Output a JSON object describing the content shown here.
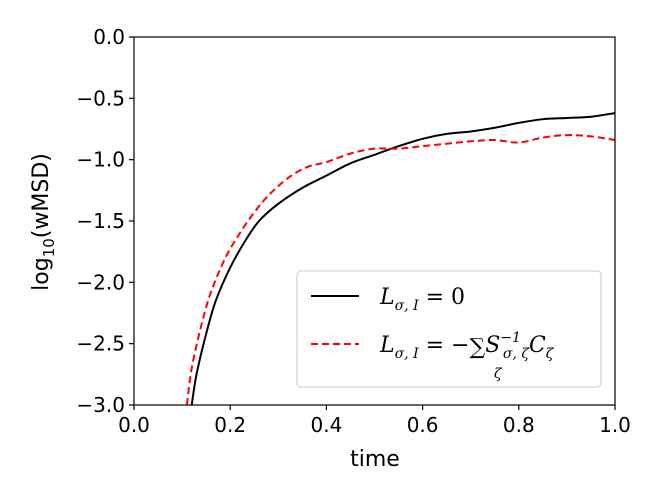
{
  "chart_data": {
    "type": "line",
    "xlabel": "time",
    "ylabel": "log10(wMSD)",
    "ylabel_main": "log",
    "ylabel_sub": "10",
    "ylabel_rest": "(wMSD)",
    "xlim": [
      0.0,
      1.0
    ],
    "ylim": [
      -3.0,
      0.0
    ],
    "xticks": [
      "0.0",
      "0.2",
      "0.4",
      "0.6",
      "0.8",
      "1.0"
    ],
    "yticks": [
      "0.0",
      "−0.5",
      "−1.0",
      "−1.5",
      "−2.0",
      "−2.5",
      "−3.0"
    ],
    "legend_position": "lower-right",
    "series": [
      {
        "name": "L_{σ,I} = 0",
        "color": "#000000",
        "style": "solid",
        "x": [
          0.12,
          0.13,
          0.15,
          0.17,
          0.2,
          0.23,
          0.26,
          0.3,
          0.35,
          0.4,
          0.45,
          0.5,
          0.55,
          0.6,
          0.65,
          0.7,
          0.75,
          0.8,
          0.85,
          0.9,
          0.95,
          1.0
        ],
        "y": [
          -3.0,
          -2.75,
          -2.42,
          -2.15,
          -1.88,
          -1.67,
          -1.5,
          -1.36,
          -1.23,
          -1.13,
          -1.03,
          -0.96,
          -0.89,
          -0.83,
          -0.79,
          -0.77,
          -0.74,
          -0.7,
          -0.67,
          -0.66,
          -0.65,
          -0.62
        ]
      },
      {
        "name": "L_{σ,I} = −Σ_ζ S^{−1}_{σ,ζ} C_ζ",
        "color": "#ff0000",
        "style": "dashed",
        "x": [
          0.11,
          0.12,
          0.14,
          0.16,
          0.19,
          0.22,
          0.25,
          0.28,
          0.32,
          0.36,
          0.4,
          0.45,
          0.5,
          0.55,
          0.6,
          0.65,
          0.7,
          0.75,
          0.8,
          0.85,
          0.9,
          0.95,
          1.0
        ],
        "y": [
          -3.0,
          -2.7,
          -2.35,
          -2.08,
          -1.8,
          -1.6,
          -1.43,
          -1.29,
          -1.15,
          -1.06,
          -1.02,
          -0.95,
          -0.91,
          -0.91,
          -0.89,
          -0.87,
          -0.85,
          -0.84,
          -0.86,
          -0.82,
          -0.8,
          -0.81,
          -0.84
        ]
      }
    ],
    "legend": {
      "line1": {
        "L": "L",
        "sub": "σ, I",
        "rest": " = 0"
      },
      "line2": {
        "L": "L",
        "sub": "σ, I",
        "eq": " = −",
        "sum": "∑",
        "sum_sub": "ζ",
        "S": "S",
        "S_sup": "−1",
        "S_sub": "σ, ζ",
        "C": "C",
        "C_sub": "ζ"
      }
    }
  }
}
